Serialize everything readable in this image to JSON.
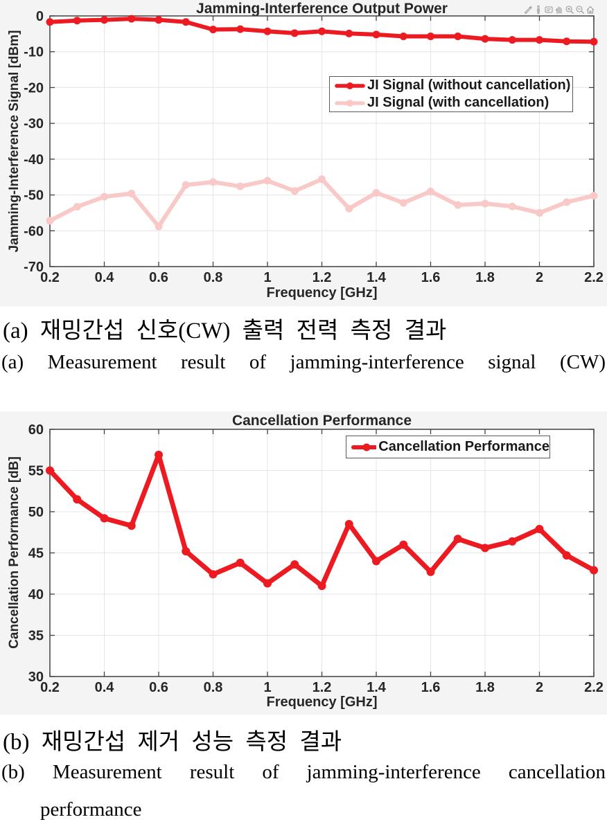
{
  "colors": {
    "series_red": "#EC1B21",
    "series_pink": "#F9C9C8",
    "grid": "#E4E4E4",
    "axis": "#404040",
    "tick_text": "#262626",
    "figure_background": "#F4F4F4"
  },
  "figure_a": {
    "title": "Jamming-Interference Output Power",
    "xlabel": "Frequency [GHz]",
    "ylabel": "Jamming-Interference Signal [dBm]",
    "toolbar_icons": [
      "edit-plot",
      "brush",
      "datatip",
      "pan",
      "zoom-in",
      "zoom-out",
      "restore-view"
    ]
  },
  "figure_b": {
    "title": "Cancellation Performance",
    "xlabel": "Frequency [GHz]",
    "ylabel": "Cancellation Performance [dB]"
  },
  "caption_a": {
    "korean": "(a) 재밍간섭 신호(CW) 출력 전력 측정 결과",
    "english": "(a) Measurement result of jamming-interference signal (CW)"
  },
  "caption_b": {
    "korean": "(b) 재밍간섭 제거 성능 측정 결과",
    "english_line1": "(b) Measurement result of jamming-interference cancellation",
    "english_line2": "performance"
  },
  "chart_data": [
    {
      "type": "line",
      "title": "Jamming-Interference Output Power",
      "xlabel": "Frequency [GHz]",
      "ylabel": "Jamming-Interference Signal [dBm]",
      "xlim": [
        0.2,
        2.2
      ],
      "ylim": [
        -70,
        0
      ],
      "grid": true,
      "legend_position": "upper right inside",
      "x": [
        0.2,
        0.3,
        0.4,
        0.5,
        0.6,
        0.7,
        0.8,
        0.9,
        1.0,
        1.1,
        1.2,
        1.3,
        1.4,
        1.5,
        1.6,
        1.7,
        1.8,
        1.9,
        2.0,
        2.1,
        2.2
      ],
      "xtick_labels": [
        "0.2",
        "0.4",
        "0.6",
        "0.8",
        "1",
        "1.2",
        "1.4",
        "1.6",
        "1.8",
        "2",
        "2.2"
      ],
      "ytick_labels": [
        "0",
        "-10",
        "-20",
        "-30",
        "-40",
        "-50",
        "-60",
        "-70"
      ],
      "series": [
        {
          "name": "JI Signal (without cancellation)",
          "color": "#EC1B21",
          "values": [
            -1.7,
            -1.3,
            -1.1,
            -0.8,
            -1.1,
            -1.7,
            -3.8,
            -3.7,
            -4.3,
            -4.8,
            -4.3,
            -4.9,
            -5.2,
            -5.7,
            -5.7,
            -5.7,
            -6.4,
            -6.7,
            -6.7,
            -7.1,
            -7.2
          ]
        },
        {
          "name": "JI Signal (with cancellation)",
          "color": "#F9C9C8",
          "values": [
            -57.2,
            -53.3,
            -50.5,
            -49.6,
            -58.8,
            -47.2,
            -46.4,
            -47.6,
            -46.0,
            -48.9,
            -45.6,
            -53.8,
            -49.4,
            -52.2,
            -49.0,
            -52.8,
            -52.4,
            -53.2,
            -55.0,
            -52.0,
            -50.2
          ]
        }
      ]
    },
    {
      "type": "line",
      "title": "Cancellation Performance",
      "xlabel": "Frequency [GHz]",
      "ylabel": "Cancellation Performance [dB]",
      "xlim": [
        0.2,
        2.2
      ],
      "ylim": [
        30,
        60
      ],
      "grid": true,
      "legend_position": "upper right inside",
      "x": [
        0.2,
        0.3,
        0.4,
        0.5,
        0.6,
        0.7,
        0.8,
        0.9,
        1.0,
        1.1,
        1.2,
        1.3,
        1.4,
        1.5,
        1.6,
        1.7,
        1.8,
        1.9,
        2.0,
        2.1,
        2.2
      ],
      "xtick_labels": [
        "0.2",
        "0.4",
        "0.6",
        "0.8",
        "1",
        "1.2",
        "1.4",
        "1.6",
        "1.8",
        "2",
        "2.2"
      ],
      "ytick_labels": [
        "60",
        "55",
        "50",
        "45",
        "40",
        "35",
        "30"
      ],
      "series": [
        {
          "name": "Cancellation Performance",
          "color": "#EC1B21",
          "values": [
            55.0,
            51.5,
            49.2,
            48.3,
            56.9,
            45.2,
            42.4,
            43.8,
            41.3,
            43.6,
            41.0,
            48.5,
            44.0,
            46.0,
            42.7,
            46.7,
            45.6,
            46.4,
            47.9,
            44.7,
            42.9
          ]
        }
      ]
    }
  ]
}
